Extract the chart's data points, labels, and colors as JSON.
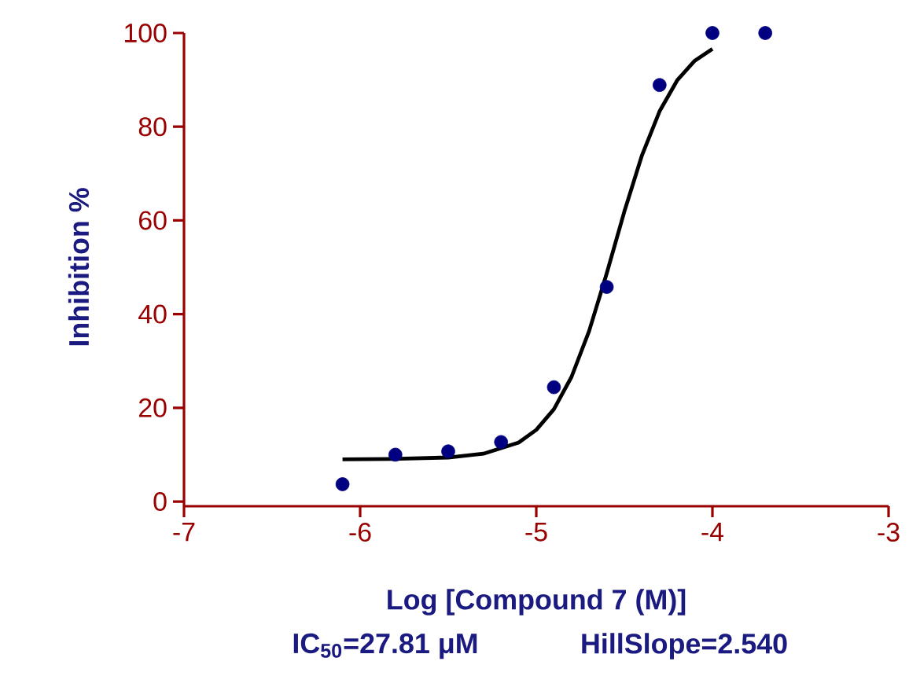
{
  "chart_data": {
    "type": "scatter",
    "xlabel": "Log [Compound 7 (M)]",
    "ylabel": "Inhibition %",
    "annotations": [
      "IC$_{50}$=27.81 μM",
      "HillSlope=2.540"
    ],
    "xlim": [
      -7,
      -3
    ],
    "ylim": [
      -1,
      100
    ],
    "xticks": [
      -7,
      -6,
      -5,
      -4,
      -3
    ],
    "yticks": [
      0,
      20,
      40,
      60,
      80,
      100
    ],
    "grid": false,
    "series": [
      {
        "color": "#000080",
        "marker": "circle",
        "x": [
          -6.1,
          -5.8,
          -5.5,
          -5.2,
          -4.9,
          -4.6,
          -4.3,
          -4.0,
          -3.7
        ],
        "values": [
          3.7,
          10,
          10.7,
          12.7,
          24.4,
          45.8,
          88.9,
          100,
          100
        ]
      },
      {
        "type": "line",
        "color": "#000000",
        "marker": "none",
        "line_style": "solid",
        "x": [
          -6.1,
          -5.8,
          -5.5,
          -5.3,
          -5.1,
          -5.0,
          -4.9,
          -4.8,
          -4.7,
          -4.6,
          -4.5,
          -4.4,
          -4.3,
          -4.2,
          -4.1,
          -4.0
        ],
        "values": [
          9.0,
          9.1,
          9.4,
          10.2,
          12.6,
          15.3,
          19.7,
          26.6,
          36.4,
          48.7,
          61.9,
          73.9,
          83.3,
          89.9,
          94.1,
          96.6
        ]
      }
    ]
  }
}
